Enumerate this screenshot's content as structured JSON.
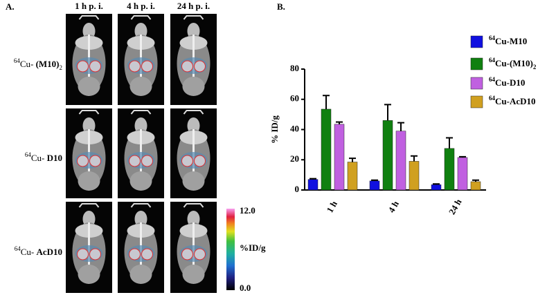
{
  "panel_a": {
    "label": "A.",
    "columns": [
      "1 h p. i.",
      "4 h p. i.",
      "24 h p. i."
    ],
    "rows": [
      "64Cu- (M10)2",
      "64Cu- D10",
      "64Cu- AcD10"
    ],
    "colorbar": {
      "max": {
        "value": 12,
        "label": "12.0"
      },
      "title": "%ID/g",
      "min": {
        "value": 0,
        "label": "0.0"
      }
    }
  },
  "chart_data": {
    "type": "bar",
    "label": "B.",
    "y_label": "% ID/g",
    "categories": [
      "1 h",
      "4 h",
      "24 h"
    ],
    "series": [
      {
        "name": "64Cu-M10",
        "color": "#1010e0",
        "values": [
          7,
          6,
          3.5
        ],
        "errors": [
          0.5,
          0.5,
          0.5
        ]
      },
      {
        "name": "64Cu-(M10)2",
        "color": "#108010",
        "values": [
          53.5,
          46,
          27.5
        ],
        "errors": [
          9,
          10.5,
          7
        ]
      },
      {
        "name": "64Cu-D10",
        "color": "#c060e0",
        "values": [
          43.5,
          39,
          21.5
        ],
        "errors": [
          1.5,
          5.5,
          0.5
        ]
      },
      {
        "name": "64Cu-AcD10",
        "color": "#d0a020",
        "values": [
          18.5,
          19,
          5.5
        ],
        "errors": [
          2.5,
          3.5,
          1
        ]
      }
    ],
    "ylim": [
      0,
      80
    ],
    "yticks": [
      0,
      20,
      40,
      60,
      80
    ]
  }
}
